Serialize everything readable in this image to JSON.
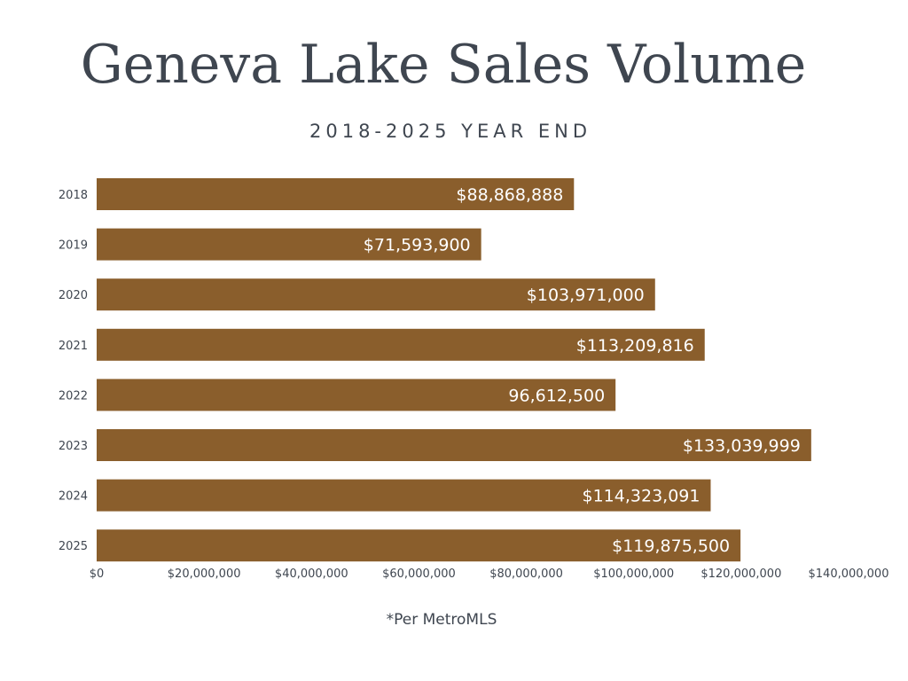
{
  "title": "Geneva Lake Sales Volume",
  "subtitle": "2018-2025 YEAR END",
  "footnote": "*Per MetroMLS",
  "colors": {
    "bar": "#8a5e2c",
    "bar_label": "#ffffff",
    "text": "#3f4650"
  },
  "chart_data": {
    "type": "bar",
    "orientation": "horizontal",
    "title": "Geneva Lake Sales Volume",
    "subtitle": "2018-2025 YEAR END",
    "xlabel": "",
    "ylabel": "",
    "xlim": [
      0,
      140000000
    ],
    "grid": false,
    "legend": "none",
    "categories": [
      "2018",
      "2019",
      "2020",
      "2021",
      "2022",
      "2023",
      "2024",
      "2025"
    ],
    "values": [
      88868888,
      71593900,
      103971000,
      113209816,
      96612500,
      133039999,
      114323091,
      119875500
    ],
    "data_labels": [
      "$88,868,888",
      "$71,593,900",
      "$103,971,000",
      "$113,209,816",
      "96,612,500",
      "$133,039,999",
      "$114,323,091",
      "$119,875,500"
    ],
    "x_ticks": [
      0,
      20000000,
      40000000,
      60000000,
      80000000,
      100000000,
      120000000,
      140000000
    ],
    "x_tick_labels": [
      "$0",
      "$20,000,000",
      "$40,000,000",
      "$60,000,000",
      "$80,000,000",
      "$100,000,000",
      "$120,000,000",
      "$140,000,000"
    ]
  }
}
